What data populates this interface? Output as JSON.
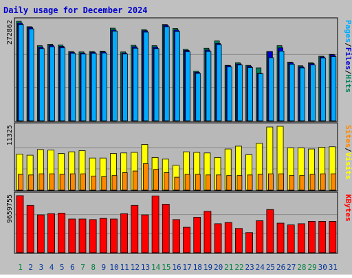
{
  "colors": {
    "background": "#c0c0c0",
    "panel": "#b8b8b8",
    "title": "#0000cc",
    "hits": "#00805c",
    "files": "#0000cc",
    "pages": "#00aaff",
    "visits": "#ffff00",
    "sites": "#ff8800",
    "kbytes": "#ff0000",
    "weekday": "#003399",
    "weekend": "#008040"
  },
  "chart_data": {
    "type": "bar",
    "title": "Daily usage for December 2024",
    "days": [
      "1",
      "2",
      "3",
      "4",
      "5",
      "6",
      "7",
      "8",
      "9",
      "10",
      "11",
      "12",
      "13",
      "14",
      "15",
      "16",
      "17",
      "18",
      "19",
      "20",
      "21",
      "22",
      "23",
      "24",
      "25",
      "26",
      "27",
      "28",
      "29",
      "30",
      "31"
    ],
    "weekend_days": [
      "1",
      "7",
      "8",
      "14",
      "15",
      "21",
      "22",
      "28",
      "29"
    ],
    "panels": [
      {
        "id": "hits-panel",
        "ymax_label": "272862",
        "ymax": 272862,
        "right_label_parts": [
          "Pages",
          "/",
          "Files",
          "/",
          "Hits"
        ],
        "series": [
          {
            "name": "Hits",
            "values": [
              272862,
              258000,
              206000,
              210000,
              208000,
              190000,
              189000,
              190000,
              191000,
              254000,
              189000,
              207000,
              250000,
              206000,
              264000,
              253000,
              196000,
              136000,
              199000,
              219000,
              152000,
              159000,
              152000,
              145000,
              190000,
              206000,
              161000,
              151000,
              159000,
              177000,
              182000
            ]
          },
          {
            "name": "Files",
            "values": [
              268000,
              256000,
              202000,
              207000,
              204000,
              188000,
              186000,
              188000,
              189000,
              249000,
              186000,
              203000,
              247000,
              202000,
              262000,
              249000,
              193000,
              133000,
              194000,
              212000,
              151000,
              156000,
              150000,
              130000,
              190000,
              200000,
              159000,
              148000,
              157000,
              175000,
              181000
            ]
          },
          {
            "name": "Pages",
            "values": [
              264000,
              252000,
              198000,
              203000,
              200000,
              185000,
              183000,
              185000,
              186000,
              246000,
              183000,
              199000,
              243000,
              198000,
              258000,
              245000,
              189000,
              130000,
              190000,
              209000,
              148000,
              153000,
              146000,
              129000,
              173000,
              191000,
              155000,
              145000,
              153000,
              172000,
              176000
            ]
          }
        ]
      },
      {
        "id": "visits-panel",
        "ymax_label": "11325",
        "ymax": 11325,
        "right_label_parts": [
          "Sites",
          "/",
          "Visits"
        ],
        "series": [
          {
            "name": "Visits",
            "values": [
              6400,
              6200,
              7200,
              7100,
              6500,
              6800,
              7000,
              5700,
              5700,
              6500,
              6600,
              6700,
              8100,
              5800,
              5500,
              4400,
              6800,
              6700,
              6600,
              5800,
              7300,
              7800,
              6300,
              8300,
              11200,
              11325,
              7500,
              7500,
              7300,
              7600,
              7700
            ]
          },
          {
            "name": "Sites",
            "values": [
              2800,
              2700,
              2900,
              2900,
              2800,
              2900,
              2900,
              2500,
              2400,
              2600,
              3100,
              3400,
              4700,
              3700,
              3100,
              2300,
              2800,
              2800,
              2700,
              2700,
              2600,
              2600,
              2700,
              2800,
              2900,
              2900,
              2600,
              2600,
              2800,
              2900,
              2900
            ]
          }
        ]
      },
      {
        "id": "kbytes-panel",
        "ymax_label": "9659755",
        "ymax": 9659755,
        "right_label_parts": [
          "KBytes"
        ],
        "series": [
          {
            "name": "KBytes",
            "values": [
              9659755,
              8000000,
              6400000,
              6600000,
              6700000,
              5700000,
              5700000,
              5600000,
              5800000,
              5700000,
              6600000,
              8000000,
              6400000,
              9600000,
              8200000,
              5600000,
              4300000,
              6000000,
              7000000,
              4900000,
              5100000,
              4100000,
              3400000,
              5400000,
              7300000,
              5000000,
              4700000,
              4900000,
              5300000,
              5300000,
              5300000
            ]
          }
        ]
      }
    ]
  }
}
